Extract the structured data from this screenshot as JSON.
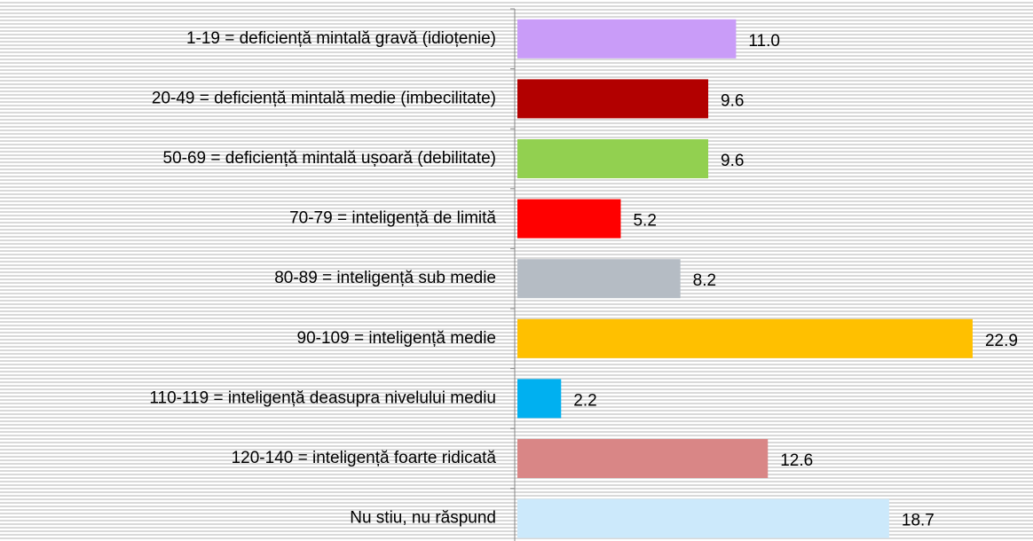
{
  "chart_data": {
    "type": "bar",
    "orientation": "horizontal",
    "categories": [
      "1-19 = deficiență mintală gravă (idioțenie)",
      "20-49 = deficiență mintală medie (imbecilitate)",
      "50-69 = deficiență mintală ușoară (debilitate)",
      "70-79 = inteligență de limită",
      "80-89 = inteligență sub medie",
      "90-109 = inteligență medie",
      "110-119 = inteligență deasupra nivelului mediu",
      "120-140 = inteligență foarte ridicată",
      "Nu stiu, nu răspund"
    ],
    "values": [
      11.0,
      9.6,
      9.6,
      5.2,
      8.2,
      22.9,
      2.2,
      12.6,
      18.7
    ],
    "value_labels": [
      "11.0",
      "9.6",
      "9.6",
      "5.2",
      "8.2",
      "22.9",
      "2.2",
      "12.6",
      "18.7"
    ],
    "colors": [
      "#c99cf8",
      "#b20000",
      "#92d050",
      "#ff0000",
      "#b5bcc4",
      "#ffc000",
      "#00b0f0",
      "#d98686",
      "#cce9fb"
    ]
  }
}
